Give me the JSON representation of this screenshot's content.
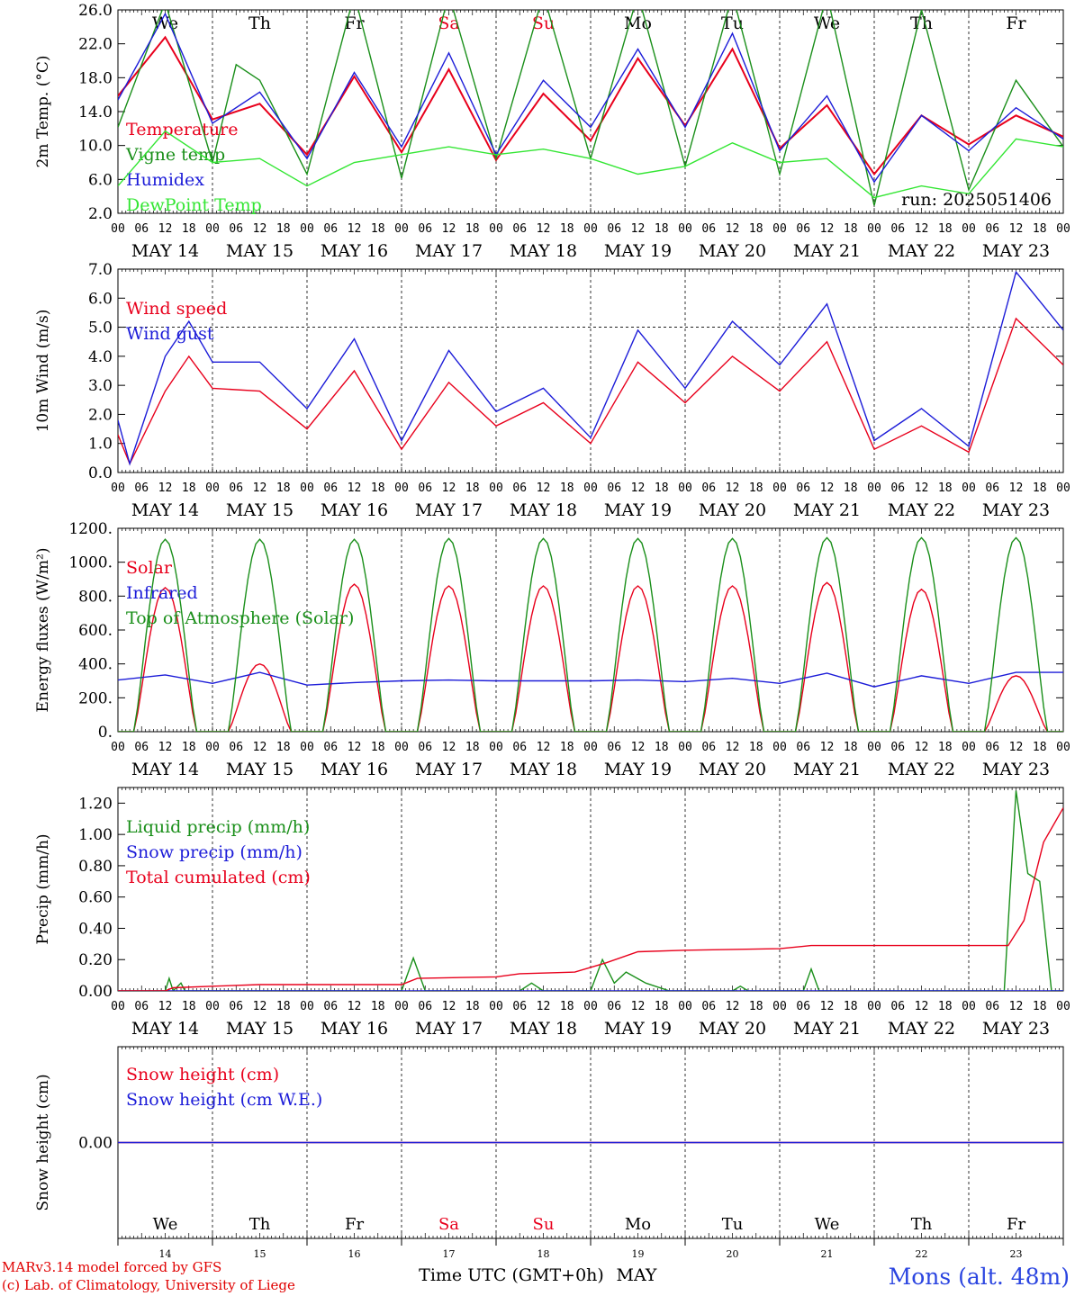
{
  "days": [
    {
      "abbr": "We",
      "date": "MAY 14",
      "num": "14",
      "weekend": false
    },
    {
      "abbr": "Th",
      "date": "MAY 15",
      "num": "15",
      "weekend": false
    },
    {
      "abbr": "Fr",
      "date": "MAY 16",
      "num": "16",
      "weekend": false
    },
    {
      "abbr": "Sa",
      "date": "MAY 17",
      "num": "17",
      "weekend": true
    },
    {
      "abbr": "Su",
      "date": "MAY 18",
      "num": "18",
      "weekend": true
    },
    {
      "abbr": "Mo",
      "date": "MAY 19",
      "num": "19",
      "weekend": false
    },
    {
      "abbr": "Tu",
      "date": "MAY 20",
      "num": "20",
      "weekend": false
    },
    {
      "abbr": "We",
      "date": "MAY 21",
      "num": "21",
      "weekend": false
    },
    {
      "abbr": "Th",
      "date": "MAY 22",
      "num": "22",
      "weekend": false
    },
    {
      "abbr": "Fr",
      "date": "MAY 23",
      "num": "23",
      "weekend": false
    }
  ],
  "hour_ticks": [
    "00",
    "06",
    "12",
    "18"
  ],
  "colors": {
    "red": "#e8001c",
    "green": "#1a8f1a",
    "blue": "#1c1cd8",
    "lightgreen": "#33e633",
    "weekend": "#e8001c"
  },
  "run_label": "run: 2025051406",
  "time_axis_label": "Time UTC (GMT+0h)",
  "month_label": "MAY",
  "credits": [
    "MARv3.14 model forced by GFS",
    "(c) Lab. of Climatology, University of Liege"
  ],
  "station": "Mons (alt. 48m)",
  "chart_data": [
    {
      "type": "line",
      "ylabel": "2m Temp. (°C)",
      "ylim": [
        2,
        28
      ],
      "yticks": [
        "2.0",
        "6.0",
        "10.0",
        "14.0",
        "18.0",
        "22.0",
        "26.0"
      ],
      "legend": "left",
      "series": [
        {
          "name": "Temperature",
          "color": "red",
          "points": [
            [
              0,
              17
            ],
            [
              12,
              24.5
            ],
            [
              24,
              14
            ],
            [
              36,
              16
            ],
            [
              48,
              9.5
            ],
            [
              60,
              19.5
            ],
            [
              72,
              9.8
            ],
            [
              84,
              20.4
            ],
            [
              96,
              8.8
            ],
            [
              108,
              17.3
            ],
            [
              120,
              11.3
            ],
            [
              132,
              21.8
            ],
            [
              144,
              13.2
            ],
            [
              156,
              23
            ],
            [
              168,
              10.3
            ],
            [
              180,
              15.8
            ],
            [
              192,
              7
            ],
            [
              204,
              14.5
            ],
            [
              216,
              10.8
            ],
            [
              228,
              14.5
            ],
            [
              240,
              11.8
            ]
          ]
        },
        {
          "name": "Vigne temp",
          "color": "green",
          "points": [
            [
              0,
              13
            ],
            [
              12,
              29
            ],
            [
              24,
              8.5
            ],
            [
              30,
              21
            ],
            [
              36,
              19
            ],
            [
              48,
              7
            ],
            [
              60,
              30
            ],
            [
              72,
              6.5
            ],
            [
              84,
              30
            ],
            [
              96,
              9
            ],
            [
              108,
              30
            ],
            [
              120,
              9
            ],
            [
              132,
              30
            ],
            [
              144,
              8
            ],
            [
              156,
              30
            ],
            [
              168,
              7
            ],
            [
              180,
              30
            ],
            [
              192,
              3
            ],
            [
              204,
              28
            ],
            [
              216,
              5
            ],
            [
              228,
              19
            ],
            [
              240,
              10.5
            ]
          ]
        },
        {
          "name": "Humidex",
          "color": "blue",
          "points": [
            [
              0,
              16.5
            ],
            [
              12,
              27.5
            ],
            [
              24,
              13.5
            ],
            [
              36,
              17.5
            ],
            [
              48,
              9
            ],
            [
              60,
              20
            ],
            [
              72,
              10.5
            ],
            [
              84,
              22.5
            ],
            [
              96,
              9.5
            ],
            [
              108,
              19
            ],
            [
              120,
              13
            ],
            [
              132,
              23
            ],
            [
              144,
              13
            ],
            [
              156,
              25
            ],
            [
              168,
              10
            ],
            [
              180,
              17
            ],
            [
              192,
              6
            ],
            [
              204,
              14.5
            ],
            [
              216,
              10
            ],
            [
              228,
              15.5
            ],
            [
              240,
              11.5
            ]
          ]
        },
        {
          "name": "DewPoint Temp",
          "color": "lightgreen",
          "points": [
            [
              0,
              5.5
            ],
            [
              12,
              12.5
            ],
            [
              24,
              8.5
            ],
            [
              36,
              9
            ],
            [
              48,
              5.5
            ],
            [
              60,
              8.5
            ],
            [
              72,
              9.5
            ],
            [
              84,
              10.5
            ],
            [
              96,
              9.5
            ],
            [
              108,
              10.2
            ],
            [
              120,
              9
            ],
            [
              132,
              7
            ],
            [
              144,
              8
            ],
            [
              156,
              11
            ],
            [
              168,
              8.5
            ],
            [
              180,
              9
            ],
            [
              192,
              4
            ],
            [
              204,
              5.5
            ],
            [
              216,
              4.5
            ],
            [
              228,
              11.5
            ],
            [
              240,
              10.5
            ]
          ]
        }
      ]
    },
    {
      "type": "line",
      "ylabel": "10m Wind (m/s)",
      "ylim": [
        0,
        7
      ],
      "yticks": [
        "0.0",
        "1.0",
        "2.0",
        "3.0",
        "4.0",
        "5.0",
        "6.0",
        "7.0"
      ],
      "refline": 5,
      "legend": "left",
      "series": [
        {
          "name": "Wind speed",
          "color": "red",
          "points": [
            [
              0,
              1.3
            ],
            [
              3,
              0.3
            ],
            [
              12,
              2.8
            ],
            [
              18,
              4
            ],
            [
              24,
              2.9
            ],
            [
              36,
              2.8
            ],
            [
              48,
              1.5
            ],
            [
              60,
              3.5
            ],
            [
              72,
              0.8
            ],
            [
              84,
              3.1
            ],
            [
              96,
              1.6
            ],
            [
              108,
              2.4
            ],
            [
              120,
              1
            ],
            [
              132,
              3.8
            ],
            [
              144,
              2.4
            ],
            [
              156,
              4
            ],
            [
              168,
              2.8
            ],
            [
              180,
              4.5
            ],
            [
              192,
              0.8
            ],
            [
              204,
              1.6
            ],
            [
              216,
              0.7
            ],
            [
              228,
              5.3
            ],
            [
              240,
              3.7
            ]
          ]
        },
        {
          "name": "Wind gust",
          "color": "blue",
          "points": [
            [
              0,
              1.8
            ],
            [
              3,
              0.3
            ],
            [
              12,
              4
            ],
            [
              18,
              5.2
            ],
            [
              24,
              3.8
            ],
            [
              36,
              3.8
            ],
            [
              48,
              2.2
            ],
            [
              60,
              4.6
            ],
            [
              72,
              1.1
            ],
            [
              84,
              4.2
            ],
            [
              96,
              2.1
            ],
            [
              108,
              2.9
            ],
            [
              120,
              1.2
            ],
            [
              132,
              4.9
            ],
            [
              144,
              2.9
            ],
            [
              156,
              5.2
            ],
            [
              168,
              3.7
            ],
            [
              180,
              5.8
            ],
            [
              192,
              1.1
            ],
            [
              204,
              2.2
            ],
            [
              216,
              0.9
            ],
            [
              228,
              6.9
            ],
            [
              240,
              4.9
            ]
          ]
        }
      ]
    },
    {
      "type": "line",
      "ylabel": "Energy fluxes (W/m²)",
      "ylim": [
        0,
        1200
      ],
      "yticks": [
        "0.",
        "200.",
        "400.",
        "600.",
        "800.",
        "1000.",
        "1200."
      ],
      "legend": "left",
      "series": [
        {
          "name": "Solar",
          "color": "red",
          "daily_peak": [
            850,
            400,
            870,
            860,
            860,
            860,
            860,
            880,
            840,
            330
          ]
        },
        {
          "name": "Infrared",
          "color": "blue",
          "points": [
            [
              0,
              305
            ],
            [
              12,
              335
            ],
            [
              24,
              285
            ],
            [
              36,
              350
            ],
            [
              48,
              275
            ],
            [
              60,
              290
            ],
            [
              72,
              300
            ],
            [
              84,
              305
            ],
            [
              96,
              300
            ],
            [
              108,
              300
            ],
            [
              120,
              300
            ],
            [
              132,
              305
            ],
            [
              144,
              295
            ],
            [
              156,
              315
            ],
            [
              168,
              285
            ],
            [
              180,
              345
            ],
            [
              192,
              265
            ],
            [
              204,
              330
            ],
            [
              216,
              285
            ],
            [
              228,
              350
            ],
            [
              240,
              350
            ]
          ]
        },
        {
          "name": "Top of Atmosphere (Solar)",
          "color": "green",
          "daily_peak": [
            1135,
            1135,
            1135,
            1140,
            1140,
            1140,
            1140,
            1145,
            1145,
            1145
          ]
        }
      ]
    },
    {
      "type": "line",
      "ylabel": "Precip (mm/h)",
      "ylim": [
        0,
        1.3
      ],
      "yticks": [
        "0.00",
        "0.20",
        "0.40",
        "0.60",
        "0.80",
        "1.00",
        "1.20"
      ],
      "legend": "left",
      "series": [
        {
          "name": "Liquid precip (mm/h)",
          "color": "green",
          "points": [
            [
              0,
              0
            ],
            [
              12,
              0
            ],
            [
              13,
              0.08
            ],
            [
              14,
              0
            ],
            [
              16,
              0.05
            ],
            [
              17,
              0
            ],
            [
              72,
              0
            ],
            [
              75,
              0.21
            ],
            [
              78,
              0
            ],
            [
              102,
              0
            ],
            [
              105,
              0.05
            ],
            [
              108,
              0
            ],
            [
              120,
              0
            ],
            [
              123,
              0.2
            ],
            [
              126,
              0.05
            ],
            [
              129,
              0.12
            ],
            [
              134,
              0.05
            ],
            [
              140,
              0
            ],
            [
              156,
              0
            ],
            [
              158,
              0.03
            ],
            [
              160,
              0
            ],
            [
              174,
              0
            ],
            [
              176,
              0.14
            ],
            [
              178,
              0
            ],
            [
              225,
              0
            ],
            [
              228,
              1.28
            ],
            [
              231,
              0.75
            ],
            [
              234,
              0.7
            ],
            [
              237,
              0
            ],
            [
              240,
              0
            ]
          ]
        },
        {
          "name": "Snow precip (mm/h)",
          "color": "blue",
          "points": [
            [
              0,
              0
            ],
            [
              240,
              0
            ]
          ]
        },
        {
          "name": "Total cumulated (cm)",
          "color": "red",
          "points": [
            [
              0,
              0
            ],
            [
              12,
              0
            ],
            [
              14,
              0.02
            ],
            [
              24,
              0.03
            ],
            [
              36,
              0.04
            ],
            [
              72,
              0.04
            ],
            [
              76,
              0.08
            ],
            [
              96,
              0.09
            ],
            [
              102,
              0.11
            ],
            [
              116,
              0.12
            ],
            [
              124,
              0.18
            ],
            [
              132,
              0.25
            ],
            [
              144,
              0.26
            ],
            [
              168,
              0.27
            ],
            [
              176,
              0.29
            ],
            [
              226,
              0.29
            ],
            [
              230,
              0.45
            ],
            [
              235,
              0.95
            ],
            [
              240,
              1.17
            ]
          ]
        }
      ]
    },
    {
      "type": "line",
      "ylabel": "Snow height (cm)",
      "ylim": [
        -1,
        1
      ],
      "yticks": [
        "0.00"
      ],
      "legend": "left",
      "series": [
        {
          "name": "Snow height (cm)",
          "color": "red",
          "points": [
            [
              0,
              0
            ],
            [
              240,
              0
            ]
          ]
        },
        {
          "name": "Snow height (cm W.E.)",
          "color": "blue",
          "points": [
            [
              0,
              0
            ],
            [
              240,
              0
            ]
          ]
        }
      ]
    }
  ]
}
